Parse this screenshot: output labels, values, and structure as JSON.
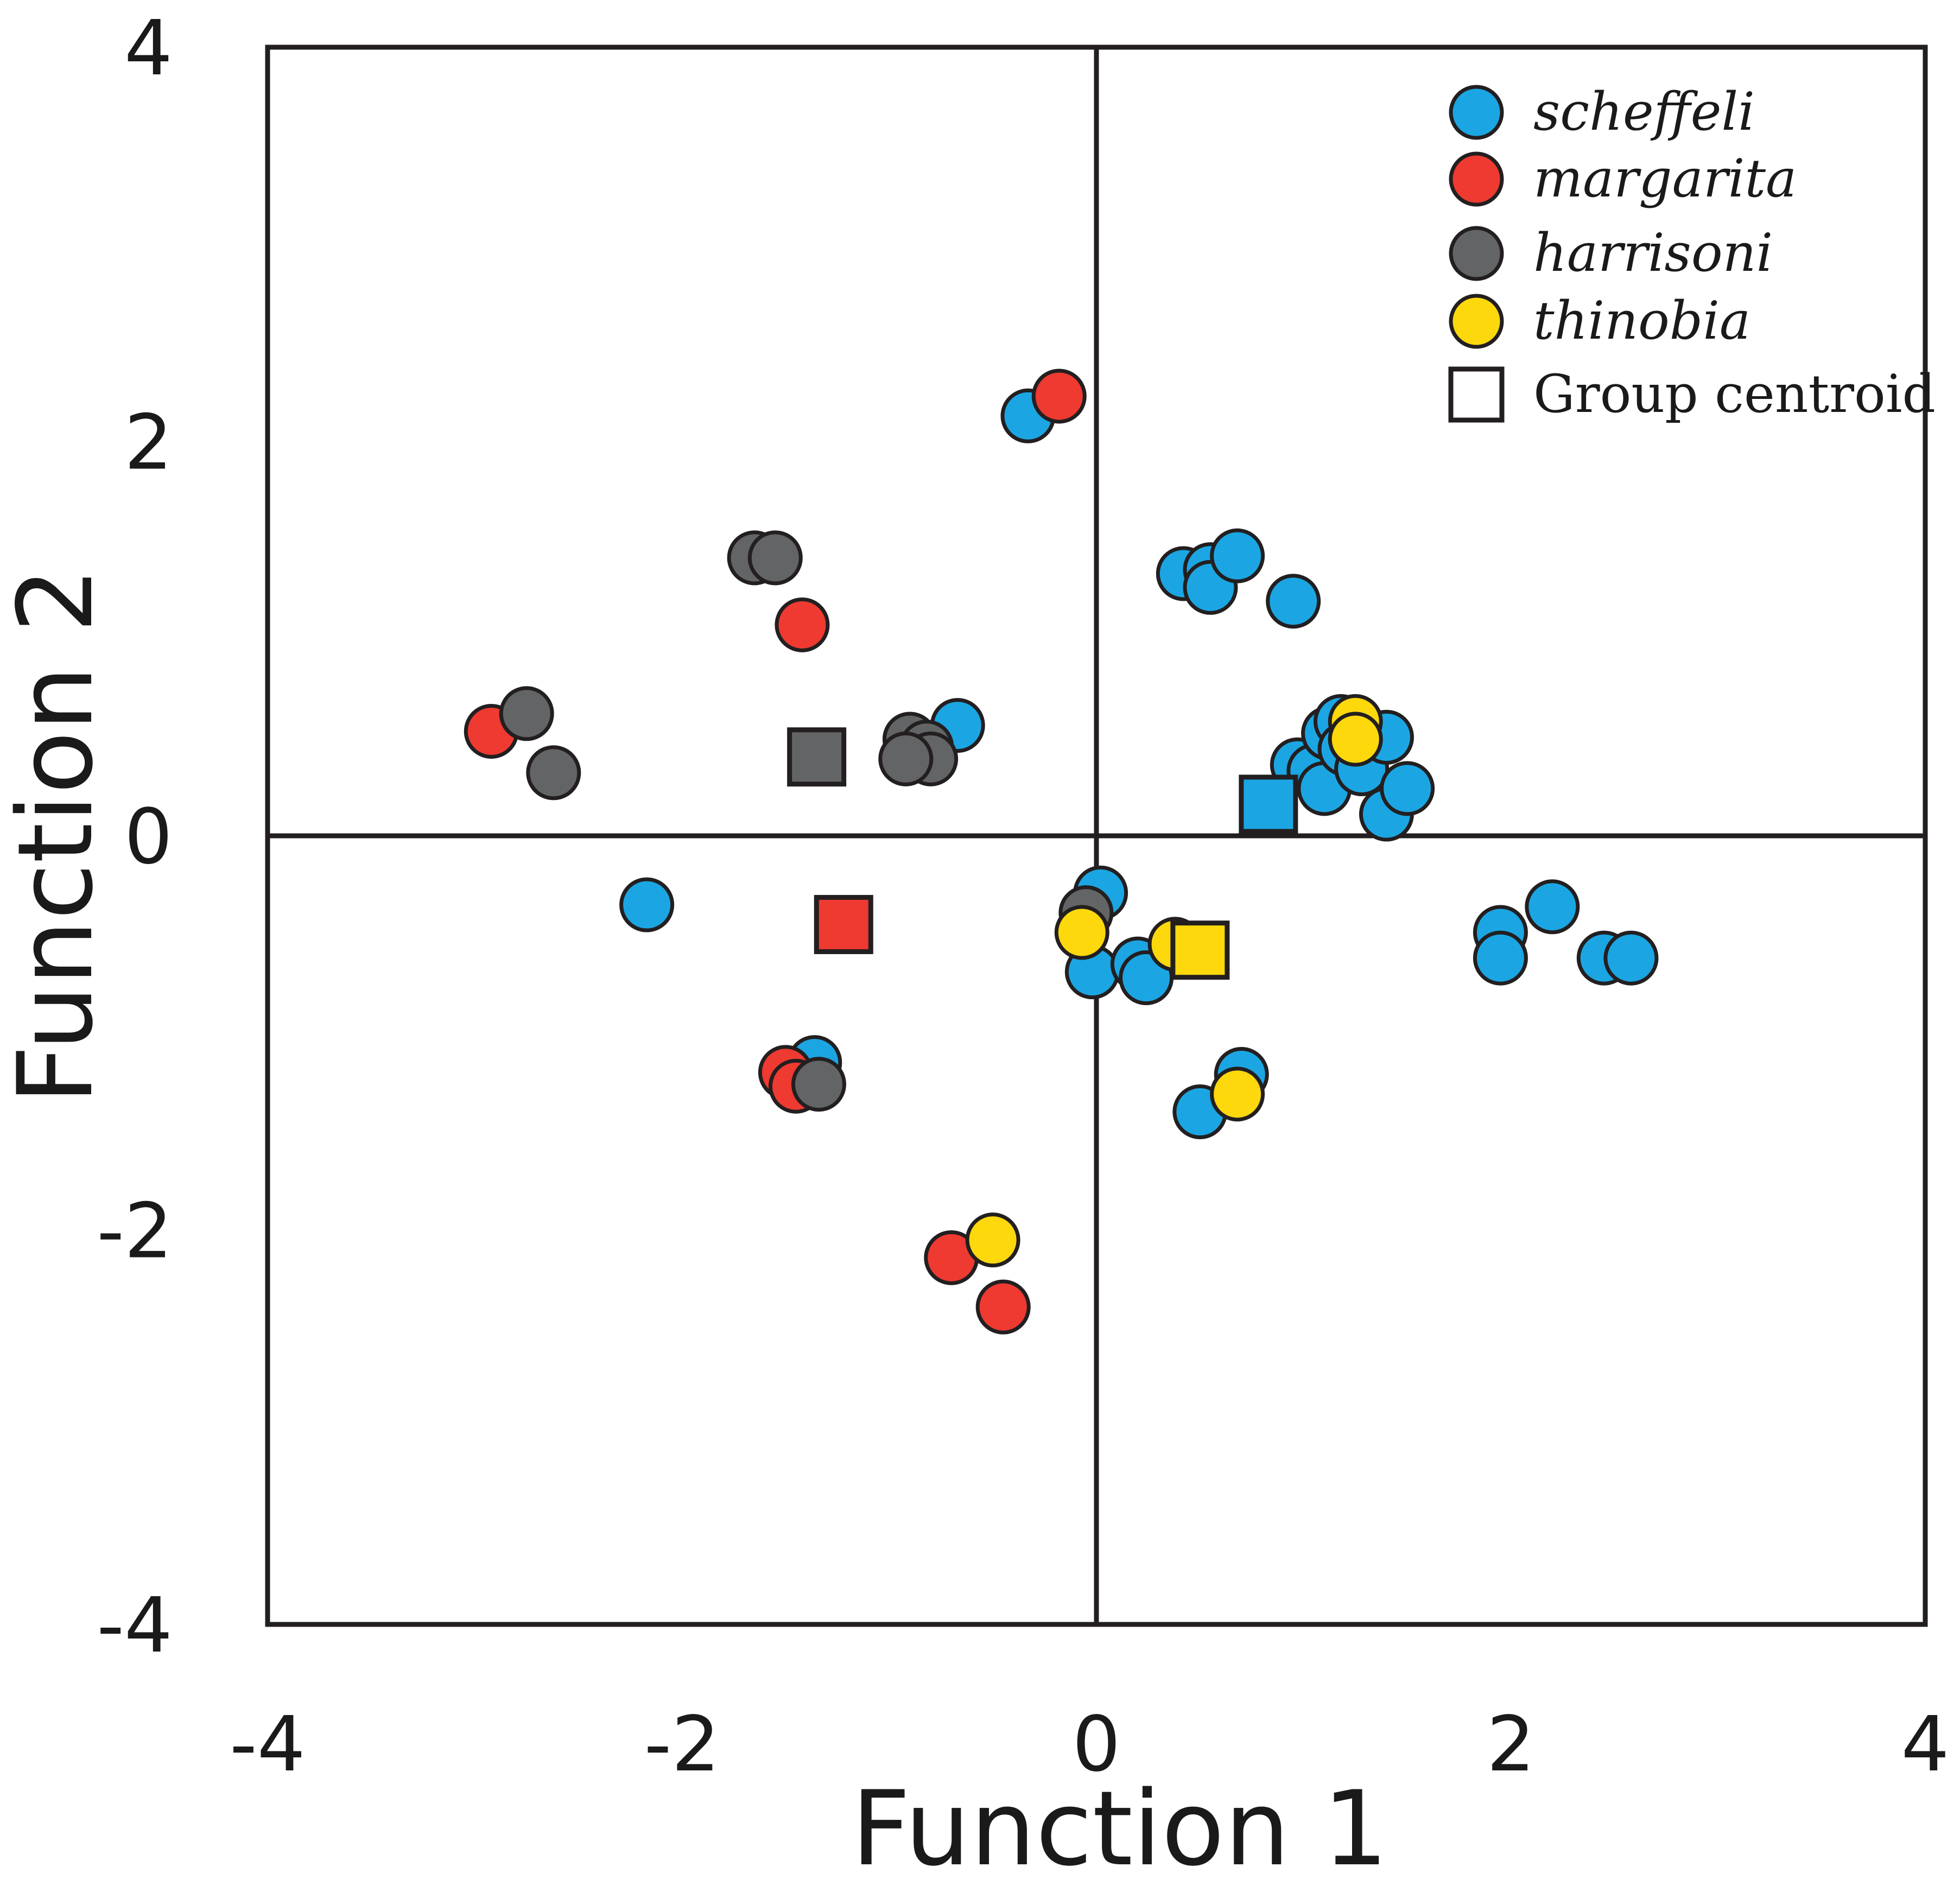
{
  "chart_data": {
    "type": "scatter",
    "xlabel": "Function 1",
    "ylabel": "Function 2",
    "xlim": [
      -4,
      4
    ],
    "ylim": [
      -4,
      4
    ],
    "x_ticks": [
      -4,
      -2,
      0,
      2,
      4
    ],
    "y_ticks": [
      -4,
      -2,
      0,
      2,
      4
    ],
    "reference_lines": [
      {
        "axis": "x",
        "value": 0
      },
      {
        "axis": "y",
        "value": 0
      }
    ],
    "legend_position": "top-right",
    "legend": [
      {
        "label": "scheffeli",
        "marker": "circle",
        "color": "#1ba6e3"
      },
      {
        "label": "margarita",
        "marker": "circle",
        "color": "#ee3a31"
      },
      {
        "label": "harrisoni",
        "marker": "circle",
        "color": "#636466"
      },
      {
        "label": "thinobia",
        "marker": "circle",
        "color": "#fcd80c"
      },
      {
        "label": "Group centroid",
        "marker": "square",
        "color": "#ffffff"
      }
    ],
    "series": [
      {
        "name": "scheffeli",
        "color": "#1ba6e3",
        "points": [
          [
            -0.33,
            2.13
          ],
          [
            0.42,
            1.33
          ],
          [
            0.55,
            1.35
          ],
          [
            0.55,
            1.26
          ],
          [
            0.68,
            1.42
          ],
          [
            0.95,
            1.19
          ],
          [
            0.97,
            0.36
          ],
          [
            1.05,
            0.33
          ],
          [
            1.1,
            0.24
          ],
          [
            1.12,
            0.52
          ],
          [
            1.18,
            0.58
          ],
          [
            1.2,
            0.44
          ],
          [
            1.28,
            0.34
          ],
          [
            1.4,
            0.5
          ],
          [
            1.4,
            0.11
          ],
          [
            1.5,
            0.24
          ],
          [
            -0.67,
            0.56
          ],
          [
            -2.17,
            -0.35
          ],
          [
            0.02,
            -0.29
          ],
          [
            -0.02,
            -0.69
          ],
          [
            0.2,
            -0.65
          ],
          [
            0.24,
            -0.72
          ],
          [
            0.7,
            -1.21
          ],
          [
            0.5,
            -1.4
          ],
          [
            -1.36,
            -1.15
          ],
          [
            1.95,
            -0.49
          ],
          [
            1.95,
            -0.62
          ],
          [
            2.2,
            -0.36
          ],
          [
            2.45,
            -0.62
          ],
          [
            2.58,
            -0.62
          ]
        ]
      },
      {
        "name": "margarita",
        "color": "#ee3a31",
        "points": [
          [
            -0.18,
            2.23
          ],
          [
            -1.42,
            1.07
          ],
          [
            -2.92,
            0.53
          ],
          [
            -1.5,
            -1.2
          ],
          [
            -1.45,
            -1.27
          ],
          [
            -0.7,
            -2.14
          ],
          [
            -0.45,
            -2.39
          ]
        ]
      },
      {
        "name": "harrisoni",
        "color": "#636466",
        "points": [
          [
            -1.65,
            1.41
          ],
          [
            -1.55,
            1.41
          ],
          [
            -2.75,
            0.62
          ],
          [
            -2.62,
            0.32
          ],
          [
            -0.9,
            0.49
          ],
          [
            -0.82,
            0.45
          ],
          [
            -0.8,
            0.39
          ],
          [
            -0.92,
            0.39
          ],
          [
            -0.05,
            -0.39
          ],
          [
            -1.34,
            -1.26
          ]
        ]
      },
      {
        "name": "thinobia",
        "color": "#fcd80c",
        "points": [
          [
            1.25,
            0.58
          ],
          [
            1.25,
            0.49
          ],
          [
            0.38,
            -0.55
          ],
          [
            -0.07,
            -0.49
          ],
          [
            0.68,
            -1.31
          ],
          [
            -0.5,
            -2.05
          ]
        ]
      }
    ],
    "centroids": [
      {
        "name": "harrisoni",
        "color": "#636466",
        "x": -1.35,
        "y": 0.4
      },
      {
        "name": "margarita",
        "color": "#ee3a31",
        "x": -1.22,
        "y": -0.45
      },
      {
        "name": "scheffeli",
        "color": "#1ba6e3",
        "x": 0.83,
        "y": 0.16
      },
      {
        "name": "thinobia",
        "color": "#fcd80c",
        "x": 0.5,
        "y": -0.58
      }
    ]
  }
}
